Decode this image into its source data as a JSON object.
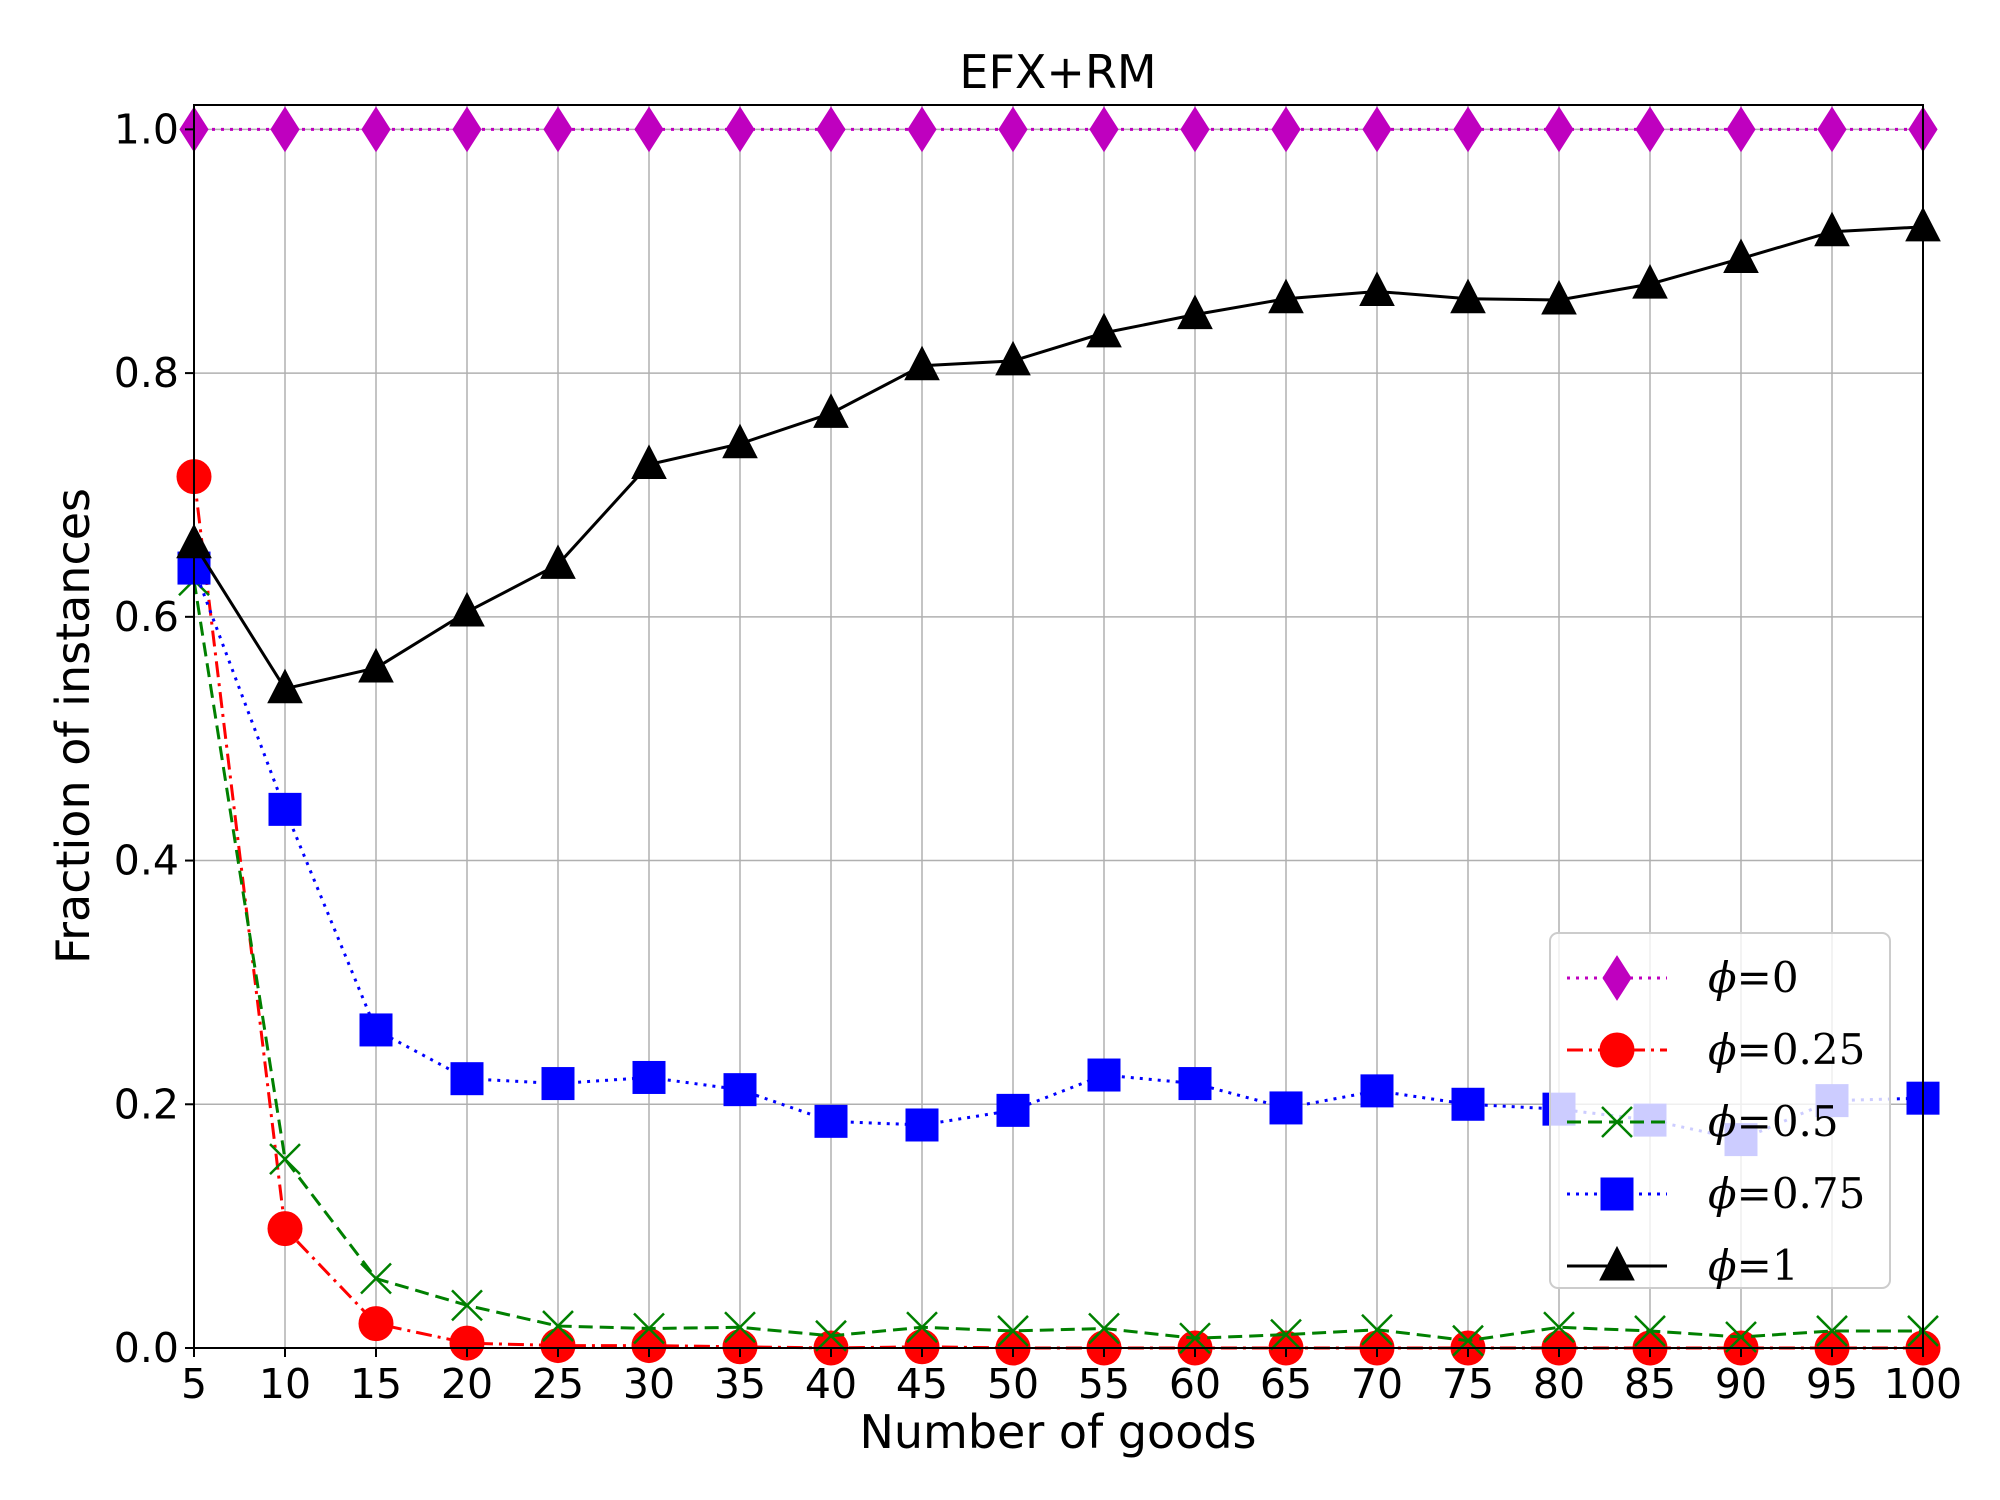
{
  "chart_data": {
    "type": "line",
    "title": "EFX+RM",
    "xlabel": "Number of goods",
    "ylabel": "Fraction of instances",
    "x": [
      5,
      10,
      15,
      20,
      25,
      30,
      35,
      40,
      45,
      50,
      55,
      60,
      65,
      70,
      75,
      80,
      85,
      90,
      95,
      100
    ],
    "xticks": [
      "5",
      "10",
      "15",
      "20",
      "25",
      "30",
      "35",
      "40",
      "45",
      "50",
      "55",
      "60",
      "65",
      "70",
      "75",
      "80",
      "85",
      "90",
      "95",
      "100"
    ],
    "yticks": [
      "0.0",
      "0.2",
      "0.4",
      "0.6",
      "0.8",
      "1.0"
    ],
    "xlim": [
      5,
      100
    ],
    "ylim": [
      0,
      1.02
    ],
    "grid": true,
    "legend_position": "lower-right",
    "series": [
      {
        "name": "ϕ=0",
        "legend_symbol": "ϕ",
        "legend_value": "=0",
        "color": "#bf00bf",
        "marker": "diamond",
        "linestyle": "dotted",
        "values": [
          1.0,
          1.0,
          1.0,
          1.0,
          1.0,
          1.0,
          1.0,
          1.0,
          1.0,
          1.0,
          1.0,
          1.0,
          1.0,
          1.0,
          1.0,
          1.0,
          1.0,
          1.0,
          1.0,
          1.0
        ]
      },
      {
        "name": "ϕ=0.25",
        "legend_symbol": "ϕ",
        "legend_value": "=0.25",
        "color": "#ff0000",
        "marker": "circle",
        "linestyle": "dashdot",
        "values": [
          0.715,
          0.098,
          0.02,
          0.004,
          0.002,
          0.002,
          0.001,
          0.0,
          0.001,
          0.0,
          0.0,
          0.0,
          0.0,
          0.0,
          0.0,
          0.0,
          0.0,
          0.0,
          0.0,
          0.0
        ]
      },
      {
        "name": "ϕ=0.5",
        "legend_symbol": "ϕ",
        "legend_value": "=0.5",
        "color": "#008000",
        "marker": "x",
        "linestyle": "dashed",
        "values": [
          0.63,
          0.155,
          0.057,
          0.035,
          0.018,
          0.016,
          0.017,
          0.01,
          0.017,
          0.014,
          0.016,
          0.008,
          0.011,
          0.015,
          0.006,
          0.017,
          0.014,
          0.009,
          0.014,
          0.014
        ]
      },
      {
        "name": "ϕ=0.75",
        "legend_symbol": "ϕ",
        "legend_value": "=0.75",
        "color": "#0000ff",
        "marker": "square",
        "linestyle": "dotted",
        "values": [
          0.64,
          0.442,
          0.261,
          0.221,
          0.217,
          0.222,
          0.212,
          0.186,
          0.183,
          0.195,
          0.224,
          0.217,
          0.197,
          0.211,
          0.2,
          0.196,
          0.187,
          0.171,
          0.203,
          0.205
        ]
      },
      {
        "name": "ϕ=1",
        "legend_symbol": "ϕ",
        "legend_value": "=1",
        "color": "#000000",
        "marker": "triangle",
        "linestyle": "solid",
        "values": [
          0.66,
          0.541,
          0.558,
          0.604,
          0.643,
          0.725,
          0.742,
          0.767,
          0.806,
          0.81,
          0.833,
          0.848,
          0.861,
          0.867,
          0.861,
          0.86,
          0.873,
          0.894,
          0.916,
          0.92
        ]
      }
    ]
  }
}
